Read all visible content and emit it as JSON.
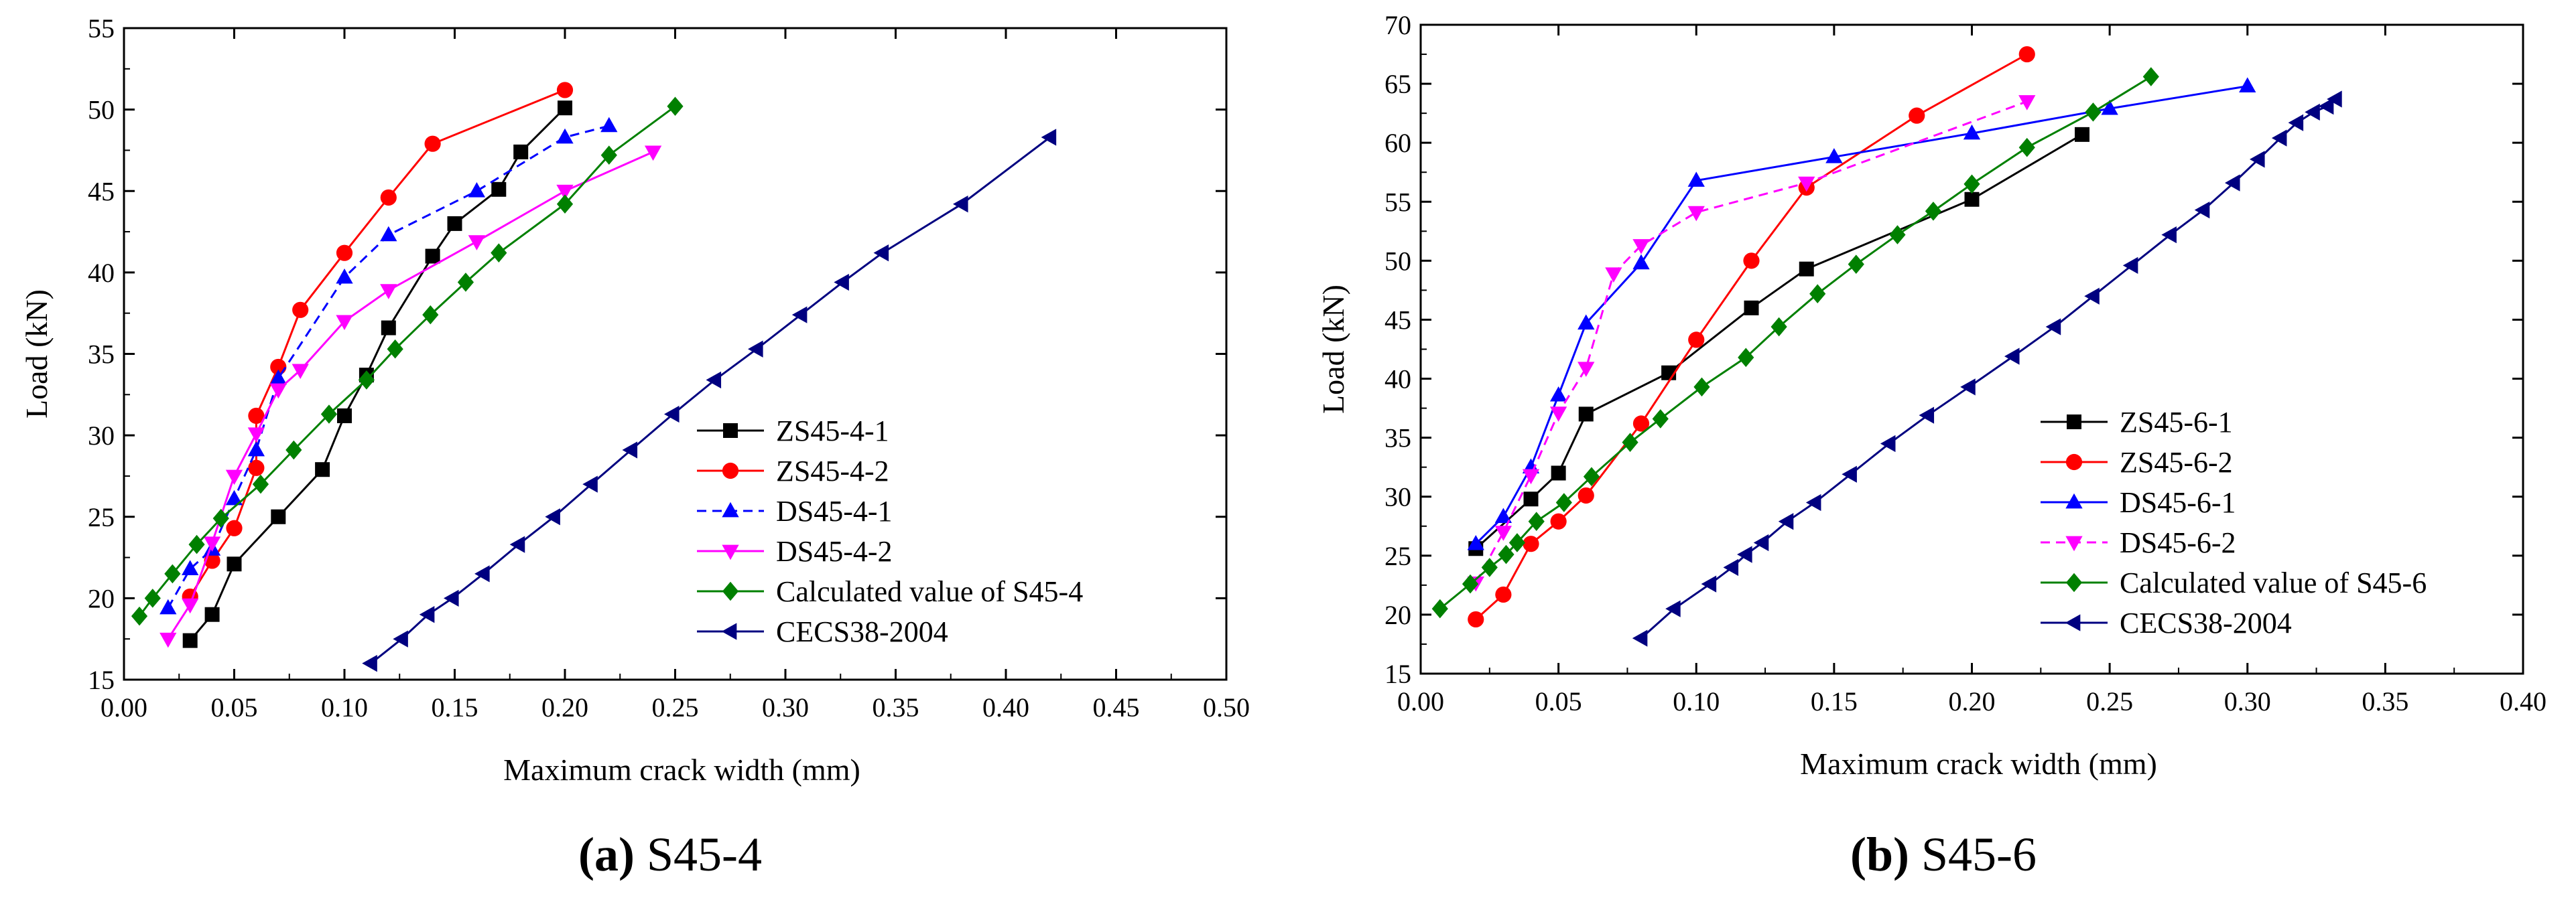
{
  "chart_data": [
    {
      "type": "line",
      "caption_letter": "(a)",
      "caption_text": "S45-4",
      "xlabel": "Maximum crack width (mm)",
      "ylabel": "Load (kN)",
      "xlim": [
        0.0,
        0.5
      ],
      "ylim": [
        15,
        55
      ],
      "xticks": [
        "0.00",
        "0.05",
        "0.10",
        "0.15",
        "0.20",
        "0.25",
        "0.30",
        "0.35",
        "0.40",
        "0.45",
        "0.50"
      ],
      "yticks": [
        "15",
        "20",
        "25",
        "30",
        "35",
        "40",
        "45",
        "50",
        "55"
      ],
      "legend_position": "bottom-right",
      "series": [
        {
          "name": "ZS45-4-1",
          "color": "#000000",
          "marker": "square",
          "dash": false,
          "x": [
            0.03,
            0.04,
            0.05,
            0.07,
            0.09,
            0.1,
            0.11,
            0.12,
            0.14,
            0.15,
            0.17,
            0.18,
            0.2
          ],
          "y": [
            17.4,
            19.0,
            22.1,
            25.0,
            27.9,
            31.2,
            33.7,
            36.6,
            41.0,
            43.0,
            45.1,
            47.4,
            50.1
          ]
        },
        {
          "name": "ZS45-4-2",
          "color": "#ff0000",
          "marker": "circle",
          "dash": false,
          "x": [
            0.03,
            0.04,
            0.05,
            0.06,
            0.06,
            0.07,
            0.08,
            0.1,
            0.12,
            0.14,
            0.2
          ],
          "y": [
            20.1,
            22.3,
            24.3,
            28.0,
            31.2,
            34.2,
            37.7,
            41.2,
            44.6,
            47.9,
            51.2
          ]
        },
        {
          "name": "DS45-4-1",
          "color": "#0000ff",
          "marker": "triangle-up",
          "dash": true,
          "x": [
            0.02,
            0.03,
            0.04,
            0.05,
            0.06,
            0.07,
            0.1,
            0.12,
            0.16,
            0.2,
            0.22
          ],
          "y": [
            19.4,
            21.8,
            23.0,
            26.1,
            29.1,
            33.5,
            39.7,
            42.3,
            45.0,
            48.3,
            49.0
          ]
        },
        {
          "name": "DS45-4-2",
          "color": "#ff00ff",
          "marker": "triangle-down",
          "dash": false,
          "x": [
            0.02,
            0.03,
            0.04,
            0.05,
            0.06,
            0.07,
            0.08,
            0.1,
            0.12,
            0.16,
            0.2,
            0.24
          ],
          "y": [
            17.5,
            19.6,
            23.4,
            27.5,
            30.1,
            32.8,
            34.0,
            37.0,
            38.9,
            41.9,
            45.0,
            47.4
          ]
        },
        {
          "name": "Calculated value of S45-4",
          "color": "#008000",
          "marker": "diamond",
          "dash": false,
          "x": [
            0.007,
            0.013,
            0.022,
            0.033,
            0.044,
            0.062,
            0.077,
            0.093,
            0.11,
            0.123,
            0.139,
            0.155,
            0.17,
            0.2,
            0.22,
            0.25
          ],
          "y": [
            18.9,
            20.0,
            21.5,
            23.3,
            24.9,
            27.0,
            29.1,
            31.3,
            33.4,
            35.3,
            37.4,
            39.4,
            41.2,
            44.2,
            47.2,
            50.2
          ]
        },
        {
          "name": "CECS38-2004",
          "color": "#000080",
          "marker": "triangle-left",
          "dash": false,
          "x": [
            0.112,
            0.126,
            0.138,
            0.149,
            0.163,
            0.179,
            0.195,
            0.212,
            0.23,
            0.249,
            0.268,
            0.287,
            0.307,
            0.326,
            0.344,
            0.38,
            0.42
          ],
          "y": [
            16.0,
            17.5,
            19.0,
            20.0,
            21.5,
            23.3,
            25.0,
            27.0,
            29.1,
            31.3,
            33.4,
            35.3,
            37.4,
            39.4,
            41.2,
            44.2,
            48.3
          ]
        }
      ]
    },
    {
      "type": "line",
      "caption_letter": "(b)",
      "caption_text": "S45-6",
      "xlabel": "Maximum crack width (mm)",
      "ylabel": "Load (kN)",
      "xlim": [
        0.0,
        0.4
      ],
      "ylim": [
        15,
        70
      ],
      "xticks": [
        "0.00",
        "0.05",
        "0.10",
        "0.15",
        "0.20",
        "0.25",
        "0.30",
        "0.35",
        "0.40"
      ],
      "yticks": [
        "15",
        "20",
        "25",
        "30",
        "35",
        "40",
        "45",
        "50",
        "55",
        "60",
        "65",
        "70"
      ],
      "legend_position": "bottom-right",
      "series": [
        {
          "name": "ZS45-6-1",
          "color": "#000000",
          "marker": "square",
          "dash": false,
          "x": [
            0.02,
            0.04,
            0.05,
            0.06,
            0.09,
            0.12,
            0.14,
            0.2,
            0.24
          ],
          "y": [
            25.6,
            29.8,
            32.0,
            37.0,
            40.5,
            46.0,
            49.3,
            55.2,
            60.7
          ]
        },
        {
          "name": "ZS45-6-2",
          "color": "#ff0000",
          "marker": "circle",
          "dash": false,
          "x": [
            0.02,
            0.03,
            0.04,
            0.05,
            0.06,
            0.08,
            0.1,
            0.12,
            0.14,
            0.18,
            0.22
          ],
          "y": [
            19.6,
            21.7,
            26.0,
            27.9,
            30.1,
            36.2,
            43.3,
            50.0,
            56.2,
            62.3,
            67.5
          ]
        },
        {
          "name": "DS45-6-1",
          "color": "#0000ff",
          "marker": "triangle-up",
          "dash": false,
          "x": [
            0.02,
            0.03,
            0.04,
            0.05,
            0.06,
            0.08,
            0.1,
            0.15,
            0.2,
            0.25,
            0.3
          ],
          "y": [
            26.0,
            28.3,
            32.5,
            38.6,
            44.7,
            49.8,
            56.8,
            58.8,
            60.8,
            62.9,
            64.8
          ]
        },
        {
          "name": "DS45-6-2",
          "color": "#ff00ff",
          "marker": "triangle-down",
          "dash": true,
          "x": [
            0.02,
            0.03,
            0.04,
            0.05,
            0.06,
            0.07,
            0.08,
            0.1,
            0.14,
            0.22
          ],
          "y": [
            22.7,
            27.0,
            31.8,
            37.1,
            40.9,
            48.9,
            51.3,
            54.1,
            56.6,
            63.5
          ]
        },
        {
          "name": "Calculated value of S45-6",
          "color": "#008000",
          "marker": "diamond",
          "dash": false,
          "x": [
            0.007,
            0.018,
            0.025,
            0.031,
            0.035,
            0.042,
            0.052,
            0.062,
            0.076,
            0.087,
            0.102,
            0.118,
            0.13,
            0.144,
            0.158,
            0.173,
            0.186,
            0.2,
            0.22,
            0.244,
            0.265
          ],
          "y": [
            20.5,
            22.6,
            24.0,
            25.1,
            26.1,
            27.9,
            29.5,
            31.7,
            34.6,
            36.6,
            39.3,
            41.8,
            44.4,
            47.2,
            49.7,
            52.2,
            54.2,
            56.5,
            59.6,
            62.6,
            65.6
          ]
        },
        {
          "name": "CECS38-2004",
          "color": "#000080",
          "marker": "triangle-left",
          "dash": false,
          "x": [
            0.08,
            0.092,
            0.105,
            0.113,
            0.118,
            0.124,
            0.133,
            0.143,
            0.156,
            0.17,
            0.184,
            0.199,
            0.215,
            0.23,
            0.244,
            0.258,
            0.272,
            0.284,
            0.295,
            0.304,
            0.312,
            0.318,
            0.324,
            0.329,
            0.332
          ],
          "y": [
            18.0,
            20.5,
            22.6,
            24.0,
            25.1,
            26.1,
            27.9,
            29.5,
            31.9,
            34.5,
            36.9,
            39.3,
            41.9,
            44.4,
            47.0,
            49.6,
            52.2,
            54.3,
            56.6,
            58.6,
            60.4,
            61.7,
            62.6,
            63.1,
            63.7
          ]
        }
      ]
    }
  ]
}
